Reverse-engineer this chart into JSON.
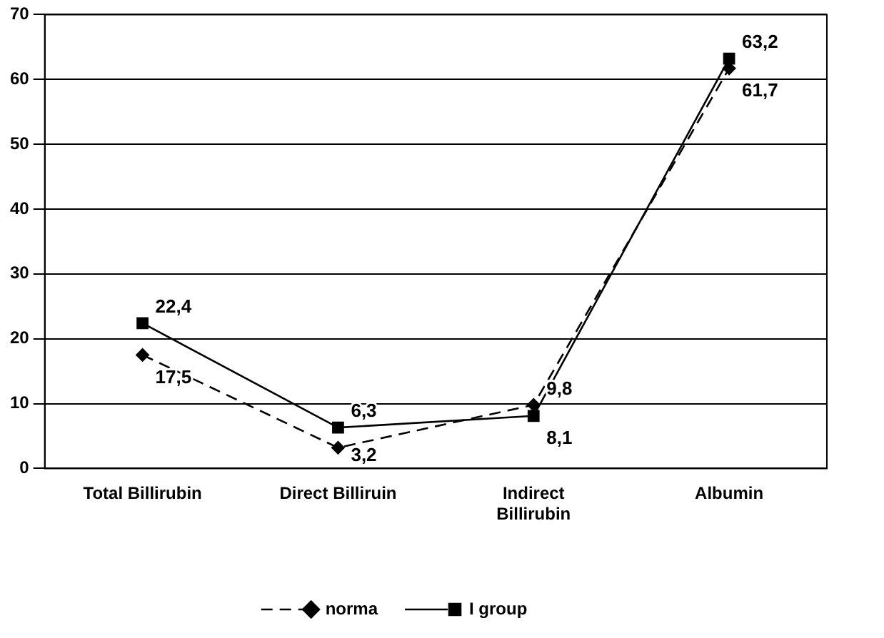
{
  "chart_data": {
    "type": "line",
    "categories": [
      "Total Billirubin",
      "Direct Billiruin",
      "Indirect Billirubin",
      "Albumin"
    ],
    "series": [
      {
        "name": "norma",
        "color": "#000000",
        "values": [
          17.5,
          3.2,
          9.8,
          61.7
        ],
        "value_labels": [
          "17,5",
          "3,2",
          "9,8",
          "61,7"
        ],
        "marker": "diamond",
        "line_style": "dashed"
      },
      {
        "name": "I group",
        "color": "#000000",
        "values": [
          22.4,
          6.3,
          8.1,
          63.2
        ],
        "value_labels": [
          "22,4",
          "6,3",
          "8,1",
          "63,2"
        ],
        "marker": "square",
        "line_style": "solid"
      }
    ],
    "ylim": [
      0,
      70
    ],
    "yticks": [
      0,
      10,
      20,
      30,
      40,
      50,
      60,
      70
    ],
    "grid": "y",
    "legend": "bottom"
  }
}
